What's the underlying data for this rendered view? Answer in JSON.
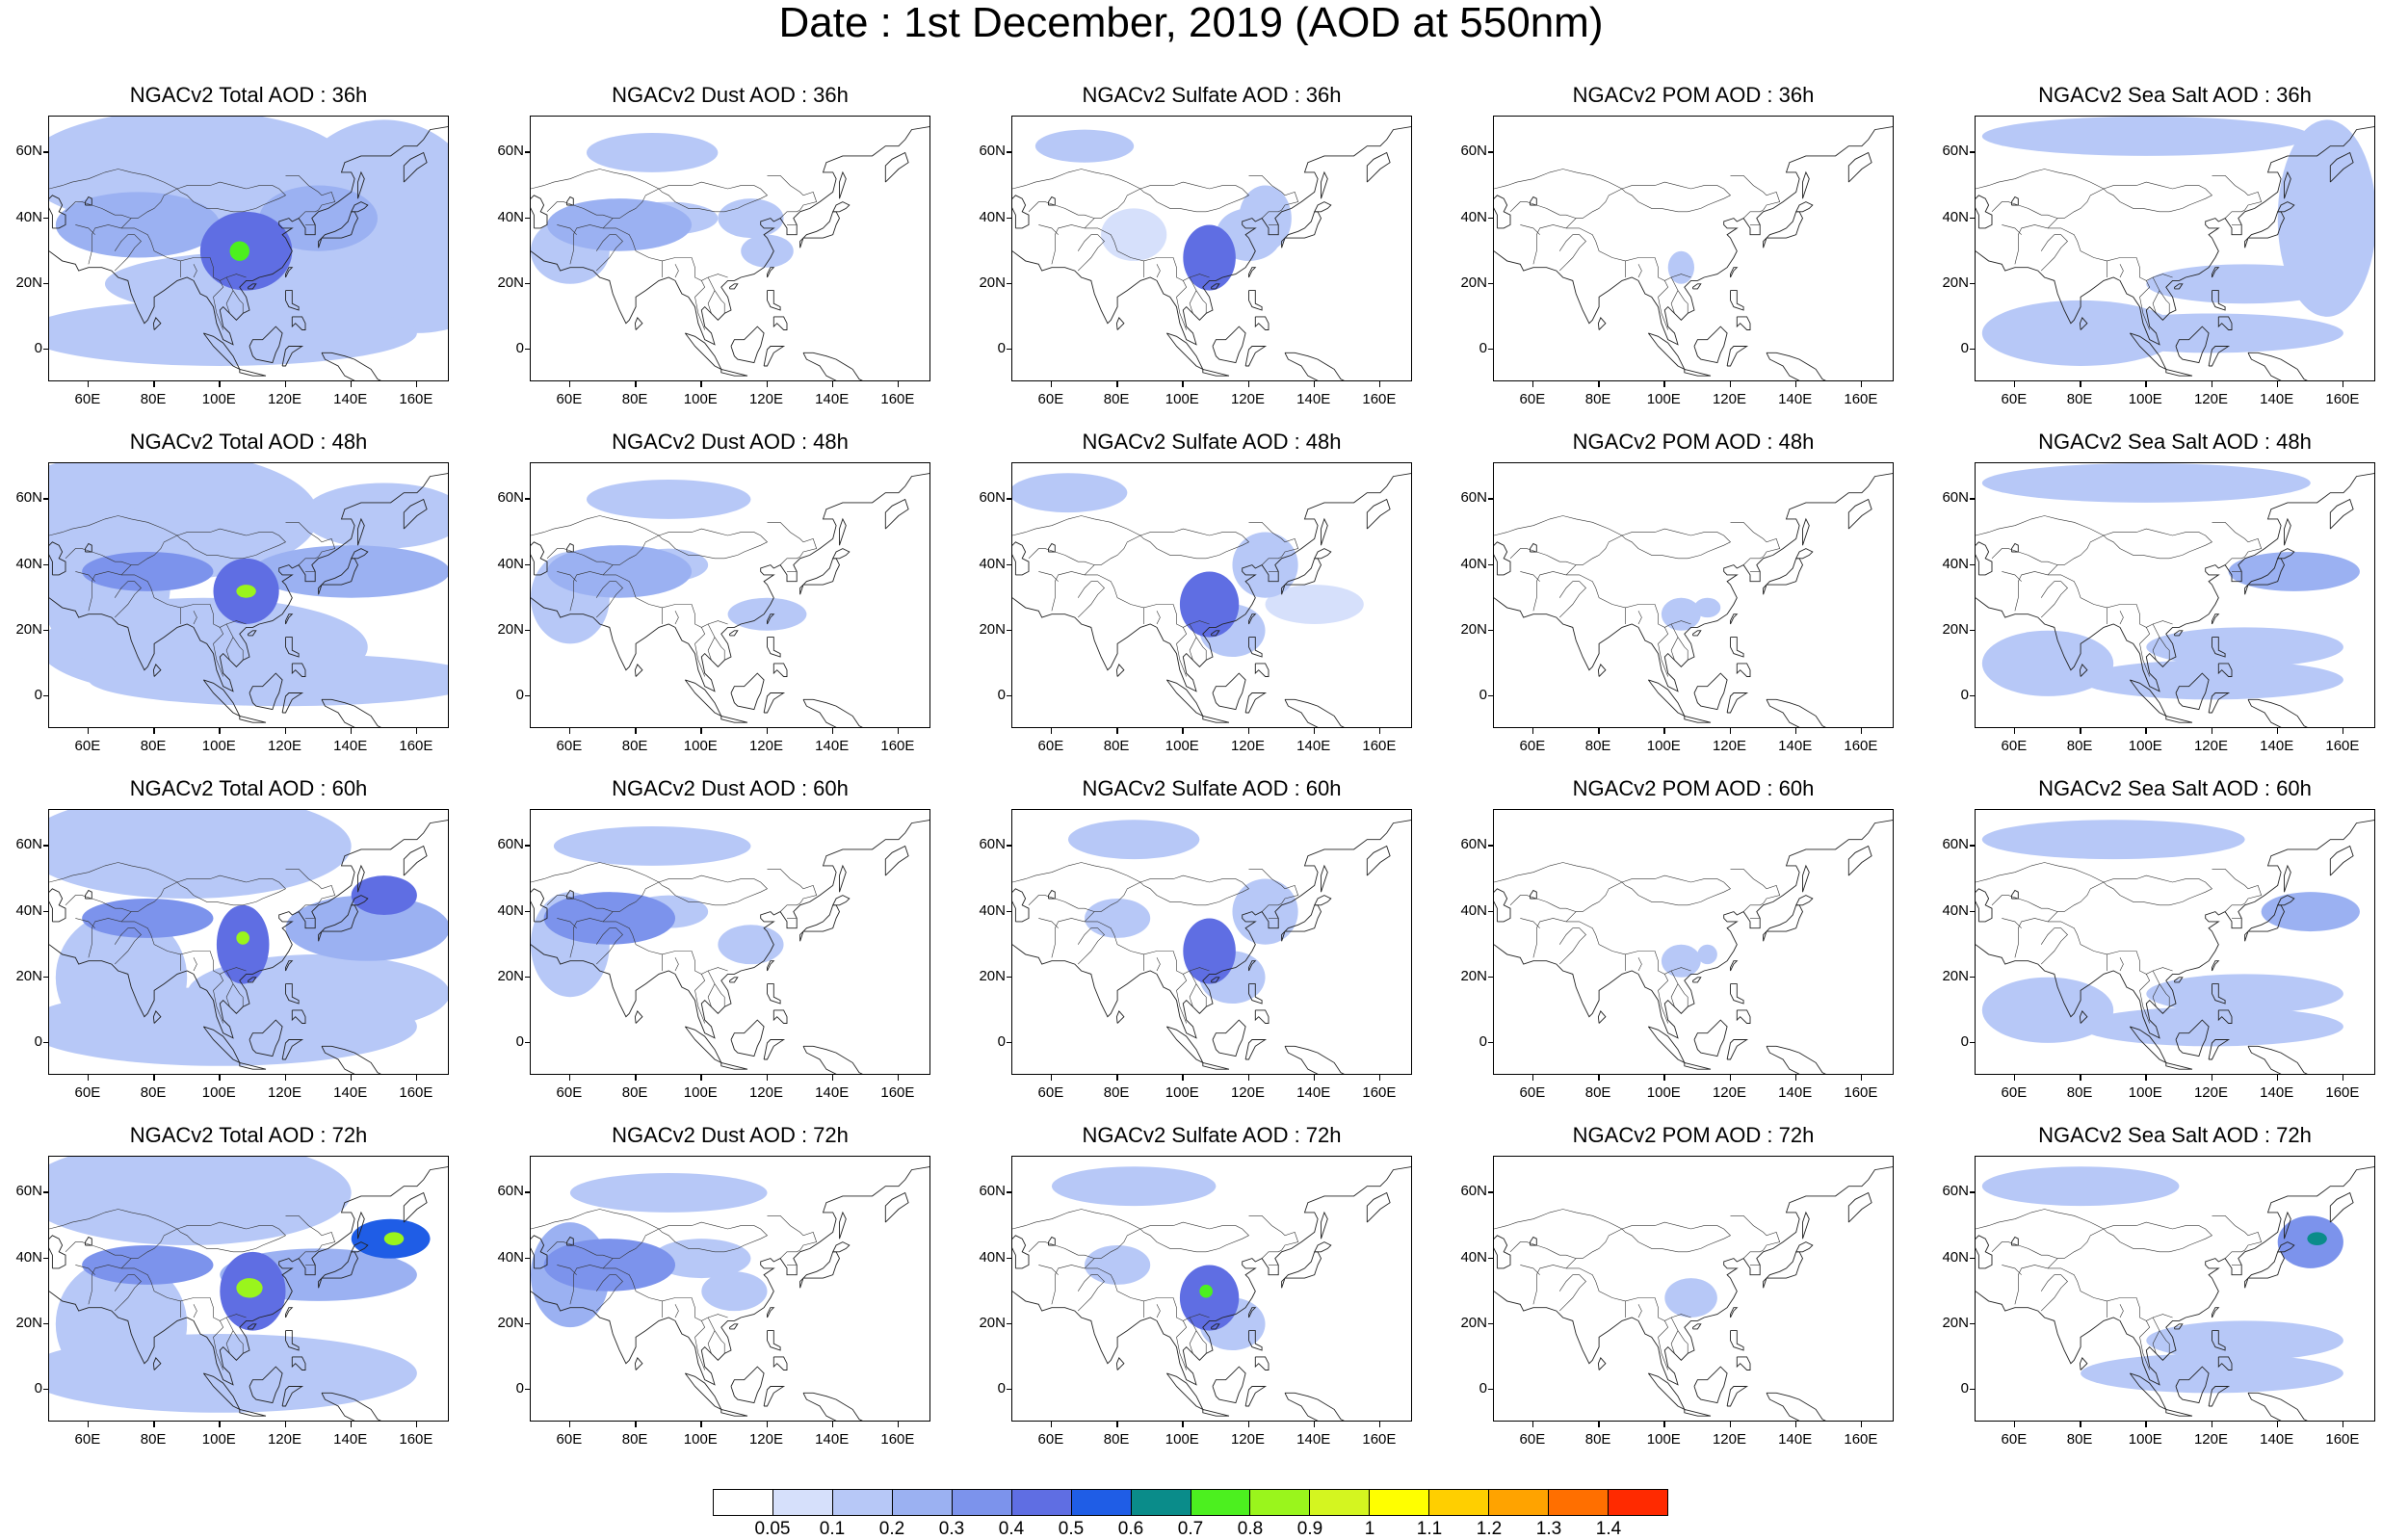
{
  "title": "Date : 1st December, 2019 (AOD at 550nm)",
  "lat_labels": [
    "60N",
    "40N",
    "20N",
    "0"
  ],
  "lon_labels": [
    "60E",
    "80E",
    "100E",
    "120E",
    "140E",
    "160E"
  ],
  "panels": [
    {
      "title": "NGACv2 Total AOD : 36h",
      "species": "total",
      "forecast_hour": 36
    },
    {
      "title": "NGACv2 Dust AOD : 36h",
      "species": "dust",
      "forecast_hour": 36
    },
    {
      "title": "NGACv2 Sulfate AOD : 36h",
      "species": "sulfate",
      "forecast_hour": 36
    },
    {
      "title": "NGACv2 POM AOD : 36h",
      "species": "pom",
      "forecast_hour": 36
    },
    {
      "title": "NGACv2 Sea Salt AOD : 36h",
      "species": "seasalt",
      "forecast_hour": 36
    },
    {
      "title": "NGACv2 Total AOD : 48h",
      "species": "total",
      "forecast_hour": 48
    },
    {
      "title": "NGACv2 Dust AOD : 48h",
      "species": "dust",
      "forecast_hour": 48
    },
    {
      "title": "NGACv2 Sulfate AOD : 48h",
      "species": "sulfate",
      "forecast_hour": 48
    },
    {
      "title": "NGACv2 POM AOD : 48h",
      "species": "pom",
      "forecast_hour": 48
    },
    {
      "title": "NGACv2 Sea Salt AOD : 48h",
      "species": "seasalt",
      "forecast_hour": 48
    },
    {
      "title": "NGACv2 Total AOD : 60h",
      "species": "total",
      "forecast_hour": 60
    },
    {
      "title": "NGACv2 Dust AOD : 60h",
      "species": "dust",
      "forecast_hour": 60
    },
    {
      "title": "NGACv2 Sulfate AOD : 60h",
      "species": "sulfate",
      "forecast_hour": 60
    },
    {
      "title": "NGACv2 POM AOD : 60h",
      "species": "pom",
      "forecast_hour": 60
    },
    {
      "title": "NGACv2 Sea Salt AOD : 60h",
      "species": "seasalt",
      "forecast_hour": 60
    },
    {
      "title": "NGACv2 Total AOD : 72h",
      "species": "total",
      "forecast_hour": 72
    },
    {
      "title": "NGACv2 Dust AOD : 72h",
      "species": "dust",
      "forecast_hour": 72
    },
    {
      "title": "NGACv2 Sulfate AOD : 72h",
      "species": "sulfate",
      "forecast_hour": 72
    },
    {
      "title": "NGACv2 POM AOD : 72h",
      "species": "pom",
      "forecast_hour": 72
    },
    {
      "title": "NGACv2 Sea Salt  AOD : 72h",
      "species": "seasalt",
      "forecast_hour": 72
    }
  ],
  "colorbar": {
    "labels": [
      "0.05",
      "0.1",
      "0.2",
      "0.3",
      "0.4",
      "0.5",
      "0.6",
      "0.7",
      "0.8",
      "0.9",
      "1",
      "1.1",
      "1.2",
      "1.3",
      "1.4"
    ],
    "colors": [
      "#ffffff",
      "#d6e0fb",
      "#b7c8f7",
      "#9bb1f2",
      "#7c93ec",
      "#5f6ee3",
      "#1f5de6",
      "#0a8c8a",
      "#4cf01f",
      "#9af51c",
      "#d4f520",
      "#ffff00",
      "#ffcf00",
      "#ffa300",
      "#ff6f00",
      "#ff2a00"
    ]
  }
}
